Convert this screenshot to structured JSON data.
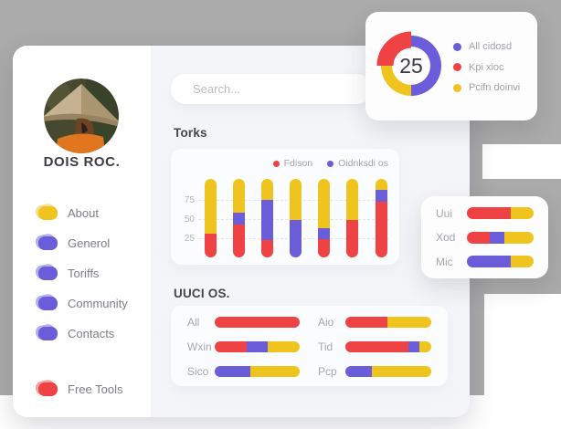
{
  "colors": {
    "red": "#ee4245",
    "yellow": "#efc41e",
    "purple": "#6b5cd9",
    "gray_background": "#ababab",
    "content_background": "#f4f5f9",
    "card_background": "#fbfcfe",
    "dark_text": "#3e3c44",
    "muted_text": "#a7a6ae"
  },
  "profile": {
    "name": "DOIS ROC."
  },
  "nav": {
    "items": [
      {
        "label": "About",
        "color": "yellow",
        "icon": "blob-icon"
      },
      {
        "label": "Generol",
        "color": "purple",
        "icon": "blob-icon"
      },
      {
        "label": "Toriffs",
        "color": "purple",
        "icon": "blob-icon"
      },
      {
        "label": "Community",
        "color": "purple",
        "icon": "blob-icon"
      },
      {
        "label": "Contacts",
        "color": "purple",
        "icon": "blob-icon"
      }
    ],
    "footer_items": [
      {
        "label": "Free Tools",
        "color": "red",
        "icon": "blob-icon"
      }
    ]
  },
  "search": {
    "placeholder": "Search..."
  },
  "chart_data": [
    {
      "id": "torks",
      "type": "bar",
      "title": "Torks",
      "stacked": true,
      "orientation": "vertical",
      "legend_position": "top-right",
      "legend": [
        {
          "name": "Fdison",
          "color": "red"
        },
        {
          "name": "Oidnksdi os",
          "color": "purple"
        }
      ],
      "ylim": [
        0,
        102
      ],
      "y_ticks": [
        25,
        50,
        75
      ],
      "grid": "horizontal-dashed",
      "bars": [
        {
          "segments": [
            {
              "color": "red",
              "value": 31
            },
            {
              "color": "yellow",
              "value": 71
            }
          ]
        },
        {
          "segments": [
            {
              "color": "red",
              "value": 43
            },
            {
              "color": "purple",
              "value": 15
            },
            {
              "color": "yellow",
              "value": 44
            }
          ]
        },
        {
          "segments": [
            {
              "color": "red",
              "value": 23
            },
            {
              "color": "purple",
              "value": 52
            },
            {
              "color": "yellow",
              "value": 27
            }
          ]
        },
        {
          "segments": [
            {
              "color": "purple",
              "value": 49
            },
            {
              "color": "yellow",
              "value": 53
            }
          ]
        },
        {
          "segments": [
            {
              "color": "red",
              "value": 24
            },
            {
              "color": "purple",
              "value": 14
            },
            {
              "color": "yellow",
              "value": 64
            }
          ]
        },
        {
          "segments": [
            {
              "color": "red",
              "value": 49
            },
            {
              "color": "yellow",
              "value": 53
            }
          ]
        },
        {
          "segments": [
            {
              "color": "red",
              "value": 73
            },
            {
              "color": "purple",
              "value": 15
            },
            {
              "color": "yellow",
              "value": 14
            }
          ]
        }
      ]
    },
    {
      "id": "kpi-donut",
      "type": "pie",
      "center_label": "25",
      "legend_position": "right",
      "slices": [
        {
          "label": "All cidosd",
          "color": "purple",
          "value": 50,
          "offset": false
        },
        {
          "label": "Pcifn doinvi",
          "color": "yellow",
          "value": 25,
          "offset": false
        },
        {
          "label": "Kpi xioc",
          "color": "red",
          "value": 25,
          "offset": true
        }
      ],
      "legend": [
        {
          "name": "All cidosd",
          "color": "purple"
        },
        {
          "name": "Kpi xioc",
          "color": "red"
        },
        {
          "name": "Pcifn doinvi",
          "color": "yellow"
        }
      ]
    },
    {
      "id": "mini-bars",
      "type": "bar",
      "stacked": true,
      "orientation": "horizontal",
      "rows": [
        {
          "label": "Uui",
          "segments": [
            {
              "color": "red",
              "value": 66
            },
            {
              "color": "yellow",
              "value": 34
            }
          ]
        },
        {
          "label": "Xod",
          "segments": [
            {
              "color": "red",
              "value": 34
            },
            {
              "color": "purple",
              "value": 22
            },
            {
              "color": "yellow",
              "value": 44
            }
          ]
        },
        {
          "label": "Mic",
          "segments": [
            {
              "color": "purple",
              "value": 66
            },
            {
              "color": "yellow",
              "value": 34
            }
          ]
        }
      ]
    },
    {
      "id": "uuci-os",
      "type": "bar",
      "title": "UUCI OS.",
      "stacked": true,
      "orientation": "horizontal",
      "columns": [
        [
          {
            "label": "All",
            "segments": [
              {
                "color": "red",
                "value": 100
              }
            ]
          },
          {
            "label": "Wxin",
            "segments": [
              {
                "color": "red",
                "value": 38
              },
              {
                "color": "purple",
                "value": 24
              },
              {
                "color": "yellow",
                "value": 38
              }
            ]
          },
          {
            "label": "Sico",
            "segments": [
              {
                "color": "purple",
                "value": 42
              },
              {
                "color": "yellow",
                "value": 58
              }
            ]
          }
        ],
        [
          {
            "label": "Aio",
            "segments": [
              {
                "color": "red",
                "value": 49
              },
              {
                "color": "yellow",
                "value": 51
              }
            ]
          },
          {
            "label": "Tid",
            "segments": [
              {
                "color": "red",
                "value": 73
              },
              {
                "color": "purple",
                "value": 13
              },
              {
                "color": "yellow",
                "value": 14
              }
            ]
          },
          {
            "label": "Pcp",
            "segments": [
              {
                "color": "purple",
                "value": 31
              },
              {
                "color": "yellow",
                "value": 69
              }
            ]
          }
        ]
      ]
    }
  ]
}
